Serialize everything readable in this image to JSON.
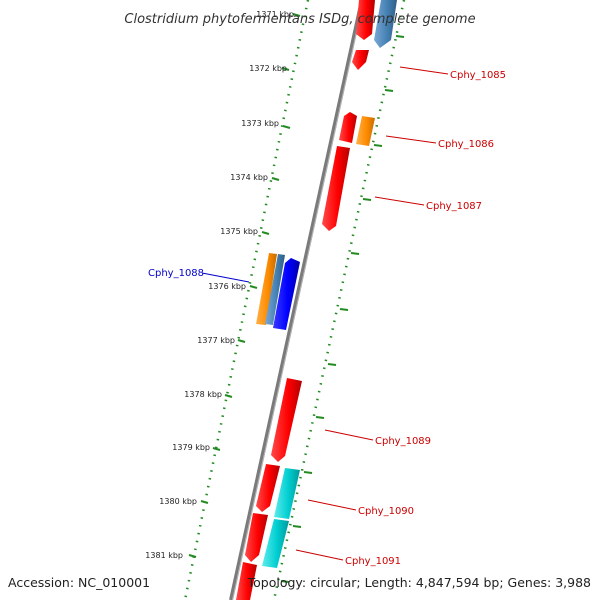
{
  "title": "Clostridium phytofermentans ISDg, complete genome",
  "footer": {
    "accession": "Accession: NC_010001",
    "summary": "Topology: circular; Length: 4,847,594 bp; Genes: 3,988"
  },
  "colors": {
    "background": "#ffffff",
    "backbone": "#808080",
    "tick_ring": "#228b22",
    "forward_cds": "#ff0000",
    "reverse_cds": "#0000ff",
    "orange_feature": "#ff8c00",
    "steelblue_feature": "#4682b4",
    "cyan_feature": "#00ced1",
    "label_red": "#cc0000",
    "label_blue": "#0000cc"
  },
  "kbp_labels": [
    "1371 kbp",
    "1372 kbp",
    "1373 kbp",
    "1374 kbp",
    "1375 kbp",
    "1376 kbp",
    "1377 kbp",
    "1378 kbp",
    "1379 kbp",
    "1380 kbp",
    "1381 kbp"
  ],
  "gene_labels": [
    "Cphy_1085",
    "Cphy_1086",
    "Cphy_1087",
    "Cphy_1088",
    "Cphy_1089",
    "Cphy_1090",
    "Cphy_1091"
  ]
}
